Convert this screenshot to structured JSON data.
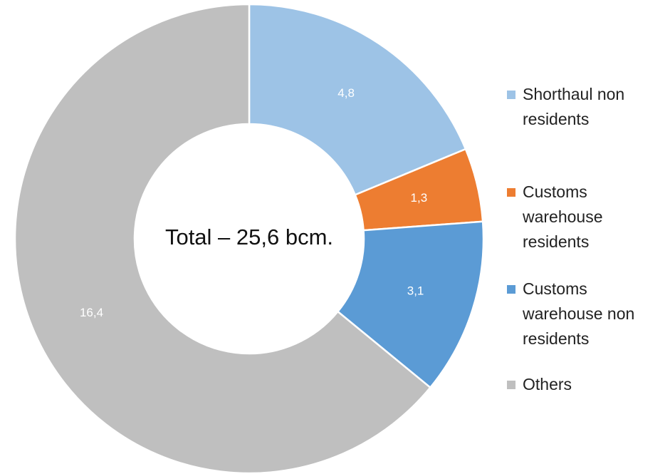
{
  "chart_data": {
    "type": "donut",
    "annotation": "Total – 25,6 bcm.",
    "categories": [
      "Shorthaul non residents",
      "Customs warehouse residents",
      "Customs warehouse non residents",
      "Others"
    ],
    "values": [
      4.8,
      1.3,
      3.1,
      16.4
    ],
    "value_labels": [
      "4,8",
      "1,3",
      "3,1",
      "16,4"
    ],
    "colors": [
      "#9dc3e6",
      "#ed7d31",
      "#5b9bd5",
      "#bfbfbf"
    ],
    "legend": "right"
  }
}
